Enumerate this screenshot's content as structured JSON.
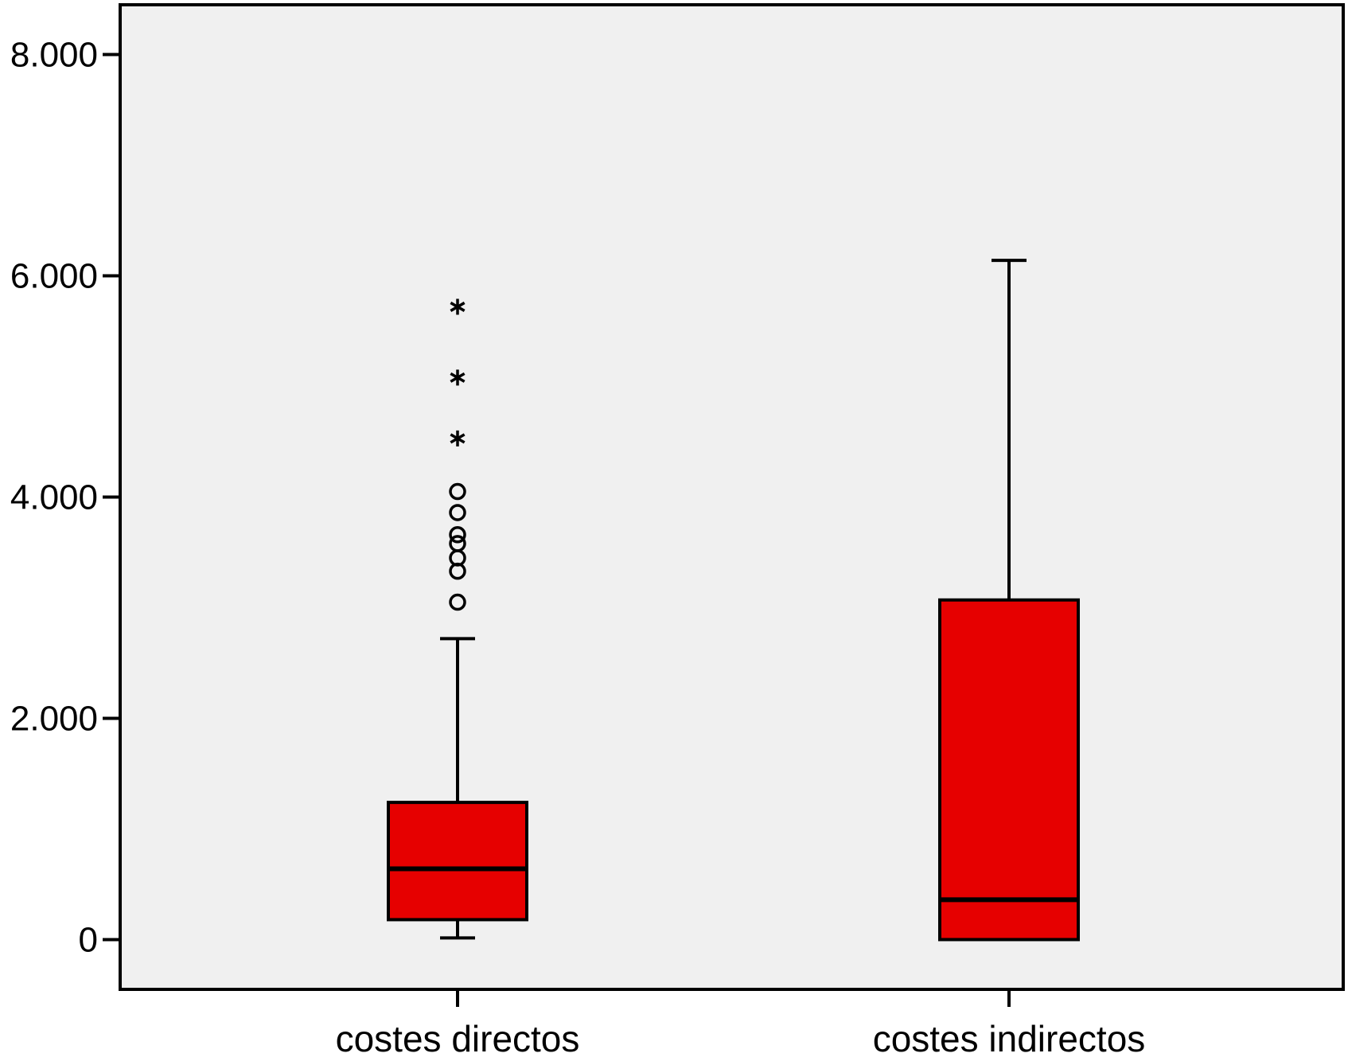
{
  "chart_data": {
    "type": "box",
    "title": "",
    "xlabel": "",
    "ylabel": "",
    "ylim": [
      -450,
      8450
    ],
    "yticks": [
      0,
      2000,
      4000,
      6000,
      8000
    ],
    "ytick_labels": [
      "0",
      "2.000",
      "4.000",
      "6.000",
      "8.000"
    ],
    "grid": false,
    "legend": "none",
    "colors": {
      "plot_bg": "#f0f0f0",
      "box_fill": "#e60000",
      "stroke": "#000000"
    },
    "categories": [
      "costes directos",
      "costes indirectos"
    ],
    "boxes": [
      {
        "category": "costes directos",
        "whisker_low": 15,
        "q1": 180,
        "median": 640,
        "q3": 1240,
        "whisker_high": 2720,
        "outliers": [
          3050,
          3330,
          3450,
          3580,
          3660,
          3860,
          4050
        ],
        "extremes": [
          4530,
          5080,
          5720
        ]
      },
      {
        "category": "costes indirectos",
        "whisker_low": 0,
        "q1": 0,
        "median": 360,
        "q3": 3070,
        "whisker_high": 6140,
        "outliers": [],
        "extremes": []
      }
    ]
  }
}
